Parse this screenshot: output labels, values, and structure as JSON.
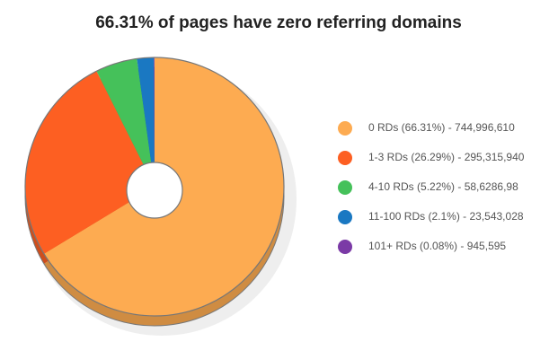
{
  "chart_data": {
    "type": "pie",
    "title": "66.31% of pages have zero referring domains",
    "categories": [
      "0 RDs (66.31%) - 744,996,610",
      "1-3 RDs (26.29%) - 295,315,940",
      "4-10 RDs (5.22%) - 58,6286,98",
      "11-100 RDs (2.1%) - 23,543,028",
      "101+ RDs (0.08%) - 945,595"
    ],
    "values": [
      66.31,
      26.29,
      5.22,
      2.1,
      0.08
    ],
    "colors": [
      "#fdab51",
      "#fd5f22",
      "#45c15a",
      "#1a78c2",
      "#7b3aa6"
    ],
    "legend": "right"
  }
}
